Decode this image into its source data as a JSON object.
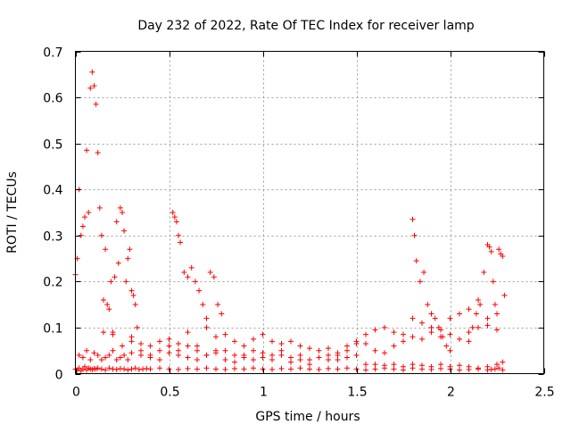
{
  "chart_data": {
    "type": "scatter",
    "title": "Day 232 of 2022, Rate Of TEC Index for receiver lamp",
    "xlabel": "GPS time / hours",
    "ylabel": "ROTI / TECUs",
    "xlim": [
      0,
      2.5
    ],
    "ylim": [
      0,
      0.7
    ],
    "xticks": [
      0,
      0.5,
      1,
      1.5,
      2,
      2.5
    ],
    "xtick_labels": [
      "0",
      "0.5",
      "1",
      "1.5",
      "2",
      "2.5"
    ],
    "yticks": [
      0,
      0.1,
      0.2,
      0.3,
      0.4,
      0.5,
      0.6,
      0.7
    ],
    "ytick_labels": [
      "0",
      "0.1",
      "0.2",
      "0.3",
      "0.4",
      "0.5",
      "0.6",
      "0.7"
    ],
    "grid": true,
    "marker": "plus",
    "color": "#ff0000",
    "series": [
      {
        "x": [
          0.0,
          0.01,
          0.02,
          0.03,
          0.04,
          0.05,
          0.06,
          0.07,
          0.08,
          0.09,
          0.1,
          0.11,
          0.12,
          0.14,
          0.16,
          0.18,
          0.2,
          0.22,
          0.24,
          0.26,
          0.28,
          0.3,
          0.32,
          0.34,
          0.36,
          0.38,
          0.4,
          0.45,
          0.5,
          0.55,
          0.6,
          0.65,
          0.7,
          0.75,
          0.8,
          0.85,
          0.9,
          0.95,
          1.0,
          1.05,
          1.1,
          1.15,
          1.2,
          1.25,
          1.3,
          1.35,
          1.4,
          1.45,
          1.5,
          1.55,
          1.6,
          1.65,
          1.7,
          1.75,
          1.8,
          1.85,
          1.9,
          1.95,
          2.0,
          2.05,
          2.1,
          2.15,
          2.2,
          2.22,
          2.24,
          2.26,
          2.28,
          0.02,
          0.04,
          0.06,
          0.08,
          0.1,
          0.12,
          0.14,
          0.16,
          0.18,
          0.2,
          0.22,
          0.24,
          0.26,
          0.28,
          0.3,
          0.35,
          0.4,
          0.45,
          0.5,
          0.55,
          0.6,
          0.65,
          0.7,
          0.75,
          0.8,
          0.85,
          0.9,
          0.95,
          1.0,
          1.05,
          1.1,
          1.15,
          1.2,
          1.25,
          1.3,
          1.35,
          1.4,
          1.45,
          1.5,
          1.55,
          1.6,
          1.65,
          1.7,
          1.75,
          1.8,
          1.85,
          1.9,
          1.95,
          2.0,
          2.05,
          2.1,
          2.15,
          2.2,
          2.25,
          2.28,
          0.0,
          0.01,
          0.02,
          0.03,
          0.04,
          0.05,
          0.06,
          0.07,
          0.08,
          0.09,
          0.1,
          0.11,
          0.12,
          0.13,
          0.14,
          0.15,
          0.16,
          0.17,
          0.18,
          0.19,
          0.2,
          0.21,
          0.22,
          0.23,
          0.24,
          0.25,
          0.26,
          0.27,
          0.28,
          0.29,
          0.3,
          0.31,
          0.32,
          0.33,
          0.52,
          0.53,
          0.54,
          0.55,
          0.56,
          0.58,
          0.6,
          0.62,
          0.64,
          0.66,
          0.68,
          0.7,
          0.72,
          0.74,
          0.76,
          0.78,
          1.8,
          1.81,
          1.82,
          1.84,
          1.86,
          1.88,
          1.9,
          1.92,
          1.94,
          1.96,
          1.98,
          2.0,
          2.1,
          2.12,
          2.14,
          2.16,
          2.18,
          2.2,
          2.21,
          2.22,
          2.23,
          2.24,
          2.25,
          2.26,
          2.27,
          2.28,
          2.29,
          0.3,
          0.35,
          0.4,
          0.45,
          0.5,
          0.55,
          0.6,
          0.65,
          0.7,
          0.75,
          0.8,
          0.85,
          0.9,
          0.95,
          1.0,
          1.05,
          1.1,
          1.15,
          1.2,
          1.25,
          1.3,
          1.35,
          1.4,
          1.45,
          1.5,
          1.55,
          1.6,
          1.65,
          1.7,
          1.75,
          1.8,
          1.85,
          1.9,
          1.95,
          2.0,
          2.05,
          2.1,
          2.15,
          2.2,
          0.15,
          0.2,
          0.25,
          0.3,
          0.35,
          0.4,
          0.45,
          0.5,
          0.55,
          0.6,
          0.65,
          0.7,
          0.75,
          0.8,
          0.85,
          0.9,
          0.95,
          1.0,
          1.05,
          1.1,
          1.15,
          1.2,
          1.25,
          1.3,
          1.35,
          1.4,
          1.45,
          1.5,
          1.55,
          1.6,
          1.65,
          1.7,
          1.75,
          1.8,
          1.85,
          1.9,
          1.95,
          2.0,
          2.05,
          2.1,
          2.15,
          2.2,
          2.25
        ],
        "y": [
          0.01,
          0.008,
          0.012,
          0.006,
          0.01,
          0.015,
          0.008,
          0.012,
          0.01,
          0.009,
          0.011,
          0.01,
          0.012,
          0.01,
          0.008,
          0.012,
          0.01,
          0.009,
          0.011,
          0.01,
          0.008,
          0.01,
          0.012,
          0.009,
          0.01,
          0.011,
          0.01,
          0.012,
          0.01,
          0.009,
          0.011,
          0.01,
          0.012,
          0.01,
          0.009,
          0.011,
          0.01,
          0.012,
          0.01,
          0.009,
          0.011,
          0.01,
          0.012,
          0.01,
          0.009,
          0.011,
          0.01,
          0.012,
          0.01,
          0.008,
          0.01,
          0.012,
          0.01,
          0.008,
          0.012,
          0.01,
          0.009,
          0.011,
          0.01,
          0.008,
          0.009,
          0.01,
          0.008,
          0.009,
          0.01,
          0.012,
          0.008,
          0.04,
          0.035,
          0.05,
          0.03,
          0.045,
          0.04,
          0.03,
          0.035,
          0.04,
          0.05,
          0.03,
          0.035,
          0.04,
          0.03,
          0.045,
          0.04,
          0.035,
          0.05,
          0.045,
          0.04,
          0.06,
          0.05,
          0.04,
          0.045,
          0.05,
          0.04,
          0.035,
          0.05,
          0.045,
          0.04,
          0.05,
          0.035,
          0.04,
          0.03,
          0.035,
          0.04,
          0.03,
          0.035,
          0.04,
          0.02,
          0.02,
          0.018,
          0.02,
          0.015,
          0.02,
          0.018,
          0.015,
          0.02,
          0.015,
          0.018,
          0.015,
          0.012,
          0.015,
          0.02,
          0.025,
          0.215,
          0.25,
          0.4,
          0.3,
          0.32,
          0.34,
          0.485,
          0.35,
          0.62,
          0.655,
          0.625,
          0.585,
          0.48,
          0.36,
          0.3,
          0.16,
          0.27,
          0.15,
          0.14,
          0.2,
          0.09,
          0.21,
          0.33,
          0.24,
          0.36,
          0.35,
          0.31,
          0.2,
          0.25,
          0.27,
          0.18,
          0.17,
          0.15,
          0.1,
          0.35,
          0.34,
          0.33,
          0.3,
          0.285,
          0.22,
          0.21,
          0.23,
          0.2,
          0.18,
          0.15,
          0.12,
          0.22,
          0.21,
          0.15,
          0.13,
          0.335,
          0.3,
          0.245,
          0.2,
          0.22,
          0.15,
          0.13,
          0.12,
          0.1,
          0.08,
          0.06,
          0.05,
          0.09,
          0.1,
          0.13,
          0.15,
          0.22,
          0.28,
          0.275,
          0.265,
          0.2,
          0.15,
          0.13,
          0.27,
          0.26,
          0.255,
          0.17,
          0.08,
          0.065,
          0.06,
          0.07,
          0.075,
          0.065,
          0.09,
          0.06,
          0.1,
          0.08,
          0.085,
          0.07,
          0.06,
          0.075,
          0.085,
          0.07,
          0.065,
          0.07,
          0.06,
          0.055,
          0.05,
          0.055,
          0.045,
          0.05,
          0.065,
          0.085,
          0.095,
          0.1,
          0.09,
          0.085,
          0.12,
          0.11,
          0.1,
          0.095,
          0.12,
          0.13,
          0.14,
          0.16,
          0.12,
          0.09,
          0.085,
          0.06,
          0.07,
          0.05,
          0.04,
          0.03,
          0.06,
          0.05,
          0.035,
          0.03,
          0.04,
          0.05,
          0.03,
          0.025,
          0.04,
          0.03,
          0.035,
          0.03,
          0.04,
          0.025,
          0.03,
          0.02,
          0.035,
          0.03,
          0.04,
          0.06,
          0.07,
          0.065,
          0.05,
          0.045,
          0.06,
          0.07,
          0.08,
          0.075,
          0.09,
          0.08,
          0.085,
          0.075,
          0.07,
          0.1,
          0.105,
          0.095
        ]
      }
    ]
  }
}
